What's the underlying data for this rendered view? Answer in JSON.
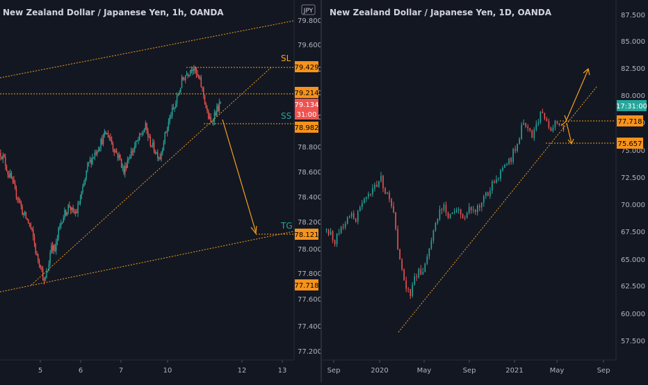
{
  "colors": {
    "background": "#131722",
    "up": "#26a69a",
    "down": "#ef5350",
    "drawing": "#f7a21b",
    "price_tag": "#f7931a",
    "current_price_tag": "#ef5350",
    "current_price_tag_daily": "#26a69a",
    "axis_text": "#b2b5be",
    "divider": "#2a2e39"
  },
  "left_panel": {
    "title": "New Zealand Dollar / Japanese Yen, 1h, OANDA",
    "currency_badge": "JPY",
    "price_axis_ticks": [
      "79.800",
      "79.600",
      "79.400",
      "79.200",
      "79.000",
      "78.800",
      "78.600",
      "78.400",
      "78.200",
      "78.000",
      "77.800",
      "77.600",
      "77.400",
      "77.200"
    ],
    "time_axis_ticks": [
      "5",
      "6",
      "7",
      "10",
      "12",
      "13"
    ],
    "labels": {
      "sl": "SL",
      "ss": "SS",
      "tg": "TG"
    },
    "price_tags": {
      "sl": "79.429",
      "level": "79.214",
      "current": "79.134",
      "countdown": "31:00",
      "ss": "78.982",
      "tg": "78.121",
      "low": "77.718"
    }
  },
  "right_panel": {
    "title": "New Zealand Dollar / Japanese Yen, 1D, OANDA",
    "price_axis_ticks": [
      "87.500",
      "85.000",
      "82.500",
      "80.000",
      "77.500",
      "75.000",
      "72.500",
      "70.000",
      "67.500",
      "65.000",
      "62.500",
      "60.000",
      "57.500"
    ],
    "time_axis_ticks": [
      "Sep",
      "2020",
      "May",
      "Sep",
      "2021",
      "May",
      "Sep"
    ],
    "price_tags": {
      "countdown": "17:31:00",
      "level_1": "77.718",
      "level_2": "75.657"
    }
  },
  "chart_data": [
    {
      "type": "candlestick",
      "title": "New Zealand Dollar / Japanese Yen, 1h, OANDA",
      "xlabel": "",
      "ylabel": "",
      "x_ticks": [
        "5",
        "6",
        "7",
        "10",
        "12",
        "13"
      ],
      "ylim": [
        77.15,
        79.85
      ],
      "grid": false,
      "key_levels": {
        "SL": 79.429,
        "level": 79.214,
        "last": 79.134,
        "SS": 78.982,
        "TG": 78.121,
        "low": 77.718
      },
      "path_close": [
        78.75,
        78.7,
        78.6,
        78.55,
        78.45,
        78.4,
        78.3,
        78.25,
        78.2,
        78.1,
        77.95,
        77.9,
        77.75,
        77.85,
        78.05,
        78.0,
        78.15,
        78.25,
        78.3,
        78.35,
        78.28,
        78.3,
        78.4,
        78.5,
        78.65,
        78.7,
        78.75,
        78.8,
        78.85,
        78.9,
        78.88,
        78.8,
        78.75,
        78.7,
        78.6,
        78.7,
        78.75,
        78.8,
        78.85,
        78.9,
        78.95,
        78.85,
        78.8,
        78.75,
        78.72,
        78.85,
        78.95,
        79.05,
        79.1,
        79.2,
        79.3,
        79.35,
        79.38,
        79.42,
        79.35,
        79.3,
        79.2,
        79.05,
        78.98,
        79.05,
        79.1,
        79.134
      ]
    },
    {
      "type": "candlestick",
      "title": "New Zealand Dollar / Japanese Yen, 1D, OANDA",
      "xlabel": "",
      "ylabel": "",
      "x_ticks": [
        "Sep",
        "2020",
        "May",
        "Sep",
        "2021",
        "May",
        "Sep"
      ],
      "ylim": [
        56.5,
        88.5
      ],
      "grid": false,
      "key_levels": {
        "level_1": 77.718,
        "level_2": 75.657
      },
      "path_close": [
        68.5,
        68.0,
        67.5,
        68.2,
        69.0,
        69.5,
        70.0,
        69.5,
        70.5,
        71.0,
        71.5,
        72.0,
        72.5,
        73.0,
        72.0,
        71.0,
        70.0,
        67.0,
        65.0,
        63.0,
        62.5,
        64.0,
        65.0,
        64.5,
        66.0,
        67.5,
        69.0,
        70.0,
        70.5,
        69.5,
        70.0,
        70.5,
        70.0,
        69.5,
        70.5,
        70.0,
        70.5,
        71.0,
        71.5,
        72.0,
        73.0,
        73.5,
        74.0,
        74.5,
        75.0,
        76.0,
        77.0,
        78.5,
        78.0,
        77.0,
        78.0,
        79.0,
        78.5,
        78.0,
        77.5,
        78.5,
        78.0,
        77.8
      ]
    }
  ]
}
